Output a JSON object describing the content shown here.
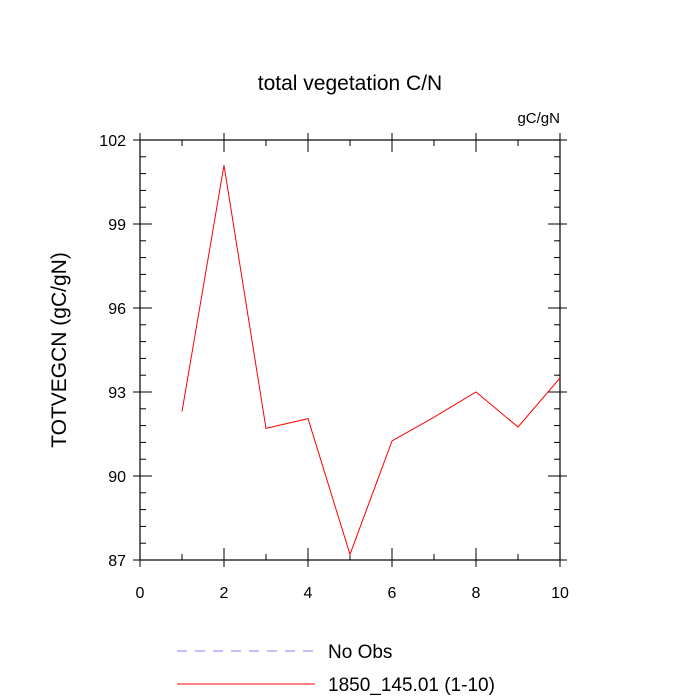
{
  "chart_data": {
    "type": "line",
    "title": "total vegetation C/N",
    "units_label": "gC/gN",
    "ylabel": "TOTVEGCN  (gC/gN)",
    "xlabel": "",
    "xlim": [
      0,
      10
    ],
    "ylim": [
      87,
      102
    ],
    "x_ticks": [
      0,
      2,
      4,
      6,
      8,
      10
    ],
    "y_ticks": [
      87,
      90,
      93,
      96,
      99,
      102
    ],
    "grid": false,
    "legend_position": "bottom",
    "series": [
      {
        "name": "No Obs",
        "color": "#8080ff",
        "dashed": true,
        "x": [],
        "y": []
      },
      {
        "name": "1850_145.01 (1-10)",
        "color": "#ff0000",
        "dashed": false,
        "x": [
          1,
          2,
          3,
          4,
          5,
          6,
          7,
          8,
          9,
          10
        ],
        "y": [
          92.3,
          101.1,
          91.7,
          92.05,
          87.2,
          91.25,
          92.1,
          93.0,
          91.75,
          93.5
        ]
      }
    ]
  }
}
